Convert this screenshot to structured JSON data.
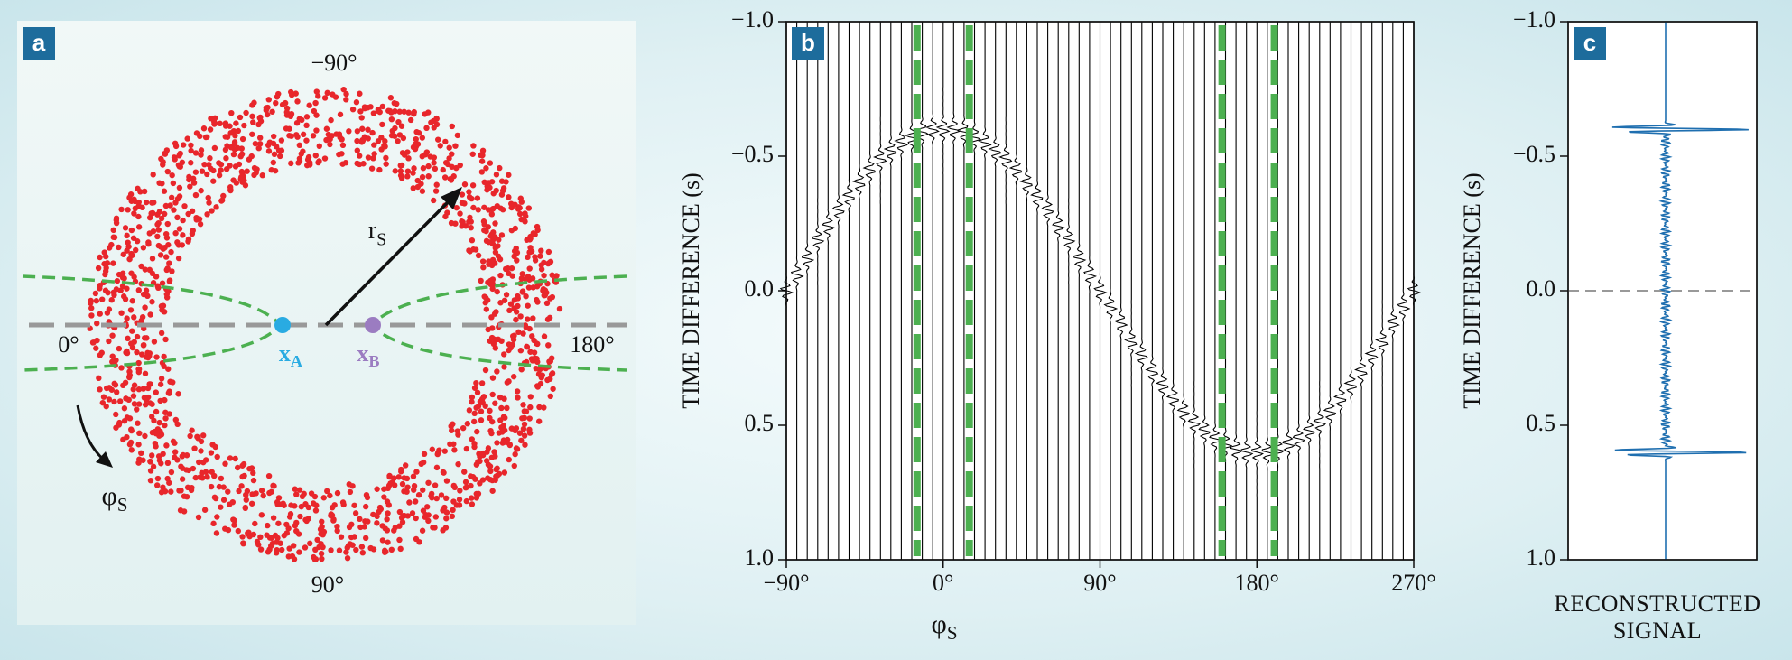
{
  "chart_data": [
    {
      "type": "diagram",
      "panel_label": "a",
      "labels": {
        "top": "−90°",
        "bottom": "90°",
        "left": "0°",
        "right": "180°",
        "radius": {
          "text": "r",
          "sub": "S"
        },
        "angle": {
          "text": "φ",
          "sub": "S"
        },
        "receiver_a": {
          "text": "x",
          "sub": "A"
        },
        "receiver_b": {
          "text": "x",
          "sub": "B"
        }
      },
      "colors": {
        "sources": "#e8262b",
        "receiver_a": "#29abe2",
        "receiver_b": "#9b7cc1",
        "hyperbola": "#4cb050",
        "baseline": "#999999"
      }
    },
    {
      "type": "wiggle",
      "panel_label": "b",
      "ylabel": "TIME DIFFERENCE (s)",
      "xlabel": {
        "text": "φ",
        "sub": "S"
      },
      "xlim": [
        -90,
        270
      ],
      "xticks": [
        {
          "value": -90,
          "label": "−90°"
        },
        {
          "value": 0,
          "label": "0°"
        },
        {
          "value": 90,
          "label": "90°"
        },
        {
          "value": 180,
          "label": "180°"
        },
        {
          "value": 270,
          "label": "270°"
        }
      ],
      "ylim": [
        1,
        -1
      ],
      "yticks": [
        {
          "value": -1,
          "label": "−1.0"
        },
        {
          "value": -0.5,
          "label": "−0.5"
        },
        {
          "value": 0,
          "label": "0.0"
        },
        0.5,
        {
          "value": 1,
          "label": "1.0"
        }
      ],
      "x": [
        -90,
        -84,
        -78,
        -72,
        -66,
        -60,
        -54,
        -48,
        -42,
        -36,
        -30,
        -24,
        -18,
        -12,
        -6,
        0,
        6,
        12,
        18,
        24,
        30,
        36,
        42,
        48,
        54,
        60,
        66,
        72,
        78,
        84,
        90,
        96,
        102,
        108,
        114,
        120,
        126,
        132,
        138,
        144,
        150,
        156,
        162,
        168,
        174,
        180,
        186,
        192,
        198,
        204,
        210,
        216,
        222,
        228,
        234,
        240,
        246,
        252,
        258,
        264,
        270
      ],
      "values": [
        0,
        -0.06,
        -0.12,
        -0.19,
        -0.24,
        -0.3,
        -0.35,
        -0.4,
        -0.45,
        -0.49,
        -0.52,
        -0.55,
        -0.57,
        -0.59,
        -0.6,
        -0.6,
        -0.6,
        -0.59,
        -0.57,
        -0.55,
        -0.52,
        -0.49,
        -0.45,
        -0.4,
        -0.35,
        -0.3,
        -0.24,
        -0.19,
        -0.12,
        -0.06,
        0,
        0.06,
        0.12,
        0.19,
        0.24,
        0.3,
        0.35,
        0.4,
        0.45,
        0.49,
        0.52,
        0.55,
        0.57,
        0.59,
        0.6,
        0.6,
        0.6,
        0.59,
        0.57,
        0.55,
        0.52,
        0.49,
        0.45,
        0.4,
        0.35,
        0.3,
        0.24,
        0.19,
        0.12,
        0.06,
        0
      ],
      "color": "#000000",
      "stationary_x": [
        -15,
        15,
        160,
        190
      ],
      "stationary_color": "#4cb050"
    },
    {
      "type": "signal",
      "panel_label": "c",
      "ylabel": "TIME DIFFERENCE (s)",
      "xlabel": "RECONSTRUCTED SIGNAL",
      "ylim": [
        1,
        -1
      ],
      "yticks": [
        {
          "value": -1,
          "label": "−1.0"
        },
        {
          "value": -0.5,
          "label": "−0.5"
        },
        {
          "value": 0,
          "label": "0.0"
        },
        0.5,
        {
          "value": 1,
          "label": "1.0"
        }
      ],
      "values": [
        -0.6,
        0.6
      ],
      "color": "#1f6fb0",
      "reference_y": 0,
      "reference_color": "#999999"
    }
  ]
}
